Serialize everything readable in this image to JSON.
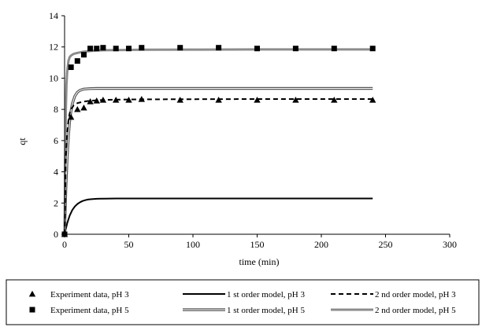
{
  "chart_data": {
    "type": "line",
    "xlabel": "time (min)",
    "ylabel": "qt",
    "xlim": [
      0,
      300
    ],
    "ylim": [
      0,
      14
    ],
    "x_ticks": [
      0,
      50,
      100,
      150,
      200,
      250,
      300
    ],
    "y_ticks": [
      0,
      2,
      4,
      6,
      8,
      10,
      12,
      14
    ],
    "grid": false,
    "legend_position": "bottom",
    "series": [
      {
        "name": "Experiment data, pH 3",
        "kind": "scatter",
        "marker": "triangle",
        "x": [
          0,
          5,
          10,
          15,
          20,
          25,
          30,
          40,
          50,
          60,
          90,
          120,
          150,
          180,
          210,
          240
        ],
        "y": [
          0,
          7.5,
          8.0,
          8.1,
          8.5,
          8.55,
          8.6,
          8.6,
          8.6,
          8.65,
          8.6,
          8.6,
          8.6,
          8.6,
          8.6,
          8.6
        ]
      },
      {
        "name": "Experiment data, pH 5",
        "kind": "scatter",
        "marker": "square",
        "x": [
          0,
          5,
          10,
          15,
          20,
          25,
          30,
          40,
          50,
          60,
          90,
          120,
          150,
          180,
          210,
          240
        ],
        "y": [
          0,
          10.7,
          11.1,
          11.5,
          11.9,
          11.9,
          11.95,
          11.9,
          11.9,
          11.95,
          11.95,
          11.95,
          11.9,
          11.9,
          11.9,
          11.9
        ]
      },
      {
        "name": "1 st order model, pH 3",
        "kind": "line",
        "style": "solid",
        "color": "#000000",
        "x": [
          0,
          2,
          4,
          6,
          8,
          10,
          12,
          14,
          16,
          18,
          20,
          25,
          30,
          40,
          60,
          100,
          150,
          200,
          240
        ],
        "y": [
          0,
          0.7,
          1.2,
          1.55,
          1.78,
          1.94,
          2.05,
          2.13,
          2.18,
          2.22,
          2.24,
          2.27,
          2.28,
          2.29,
          2.29,
          2.29,
          2.29,
          2.29,
          2.29
        ]
      },
      {
        "name": "2 nd order model, pH 3",
        "kind": "line",
        "style": "dashed",
        "color": "#000000",
        "x": [
          0,
          1,
          2,
          3,
          4,
          5,
          7,
          10,
          15,
          20,
          25,
          30,
          40,
          60,
          100,
          150,
          200,
          240
        ],
        "y": [
          0,
          4.9,
          6.5,
          7.3,
          7.75,
          8.0,
          8.25,
          8.4,
          8.5,
          8.55,
          8.58,
          8.6,
          8.62,
          8.64,
          8.65,
          8.66,
          8.66,
          8.66
        ]
      },
      {
        "name": "1 st order model, pH 5",
        "kind": "line",
        "style": "double",
        "color": "#555555",
        "x": [
          0,
          1,
          2,
          3,
          4,
          5,
          6,
          8,
          10,
          12,
          15,
          20,
          25,
          30,
          40,
          60,
          100,
          150,
          200,
          240
        ],
        "y": [
          0,
          2.8,
          4.9,
          6.3,
          7.25,
          7.9,
          8.35,
          8.85,
          9.1,
          9.22,
          9.3,
          9.33,
          9.34,
          9.34,
          9.34,
          9.34,
          9.34,
          9.34,
          9.34,
          9.34
        ]
      },
      {
        "name": "2 nd order model, pH 5",
        "kind": "line",
        "style": "thick",
        "color": "#8c8c8c",
        "x": [
          0,
          0.5,
          1,
          1.5,
          2,
          3,
          4,
          5,
          7,
          10,
          15,
          20,
          25,
          30,
          40,
          60,
          100,
          150,
          200,
          240
        ],
        "y": [
          0,
          5.0,
          8.0,
          9.6,
          10.4,
          11.1,
          11.35,
          11.45,
          11.55,
          11.62,
          11.7,
          11.74,
          11.77,
          11.79,
          11.8,
          11.82,
          11.83,
          11.84,
          11.84,
          11.84
        ]
      }
    ]
  },
  "legend_rows": [
    [
      {
        "label": "Experiment data, pH 3",
        "series_index": 0
      },
      {
        "label": "1 st order model, pH 3",
        "series_index": 2
      },
      {
        "label": "2 nd order model, pH 3",
        "series_index": 3
      }
    ],
    [
      {
        "label": "Experiment data, pH 5",
        "series_index": 1
      },
      {
        "label": "1 st order model, pH 5",
        "series_index": 4
      },
      {
        "label": "2 nd order model, pH 5",
        "series_index": 5
      }
    ]
  ]
}
